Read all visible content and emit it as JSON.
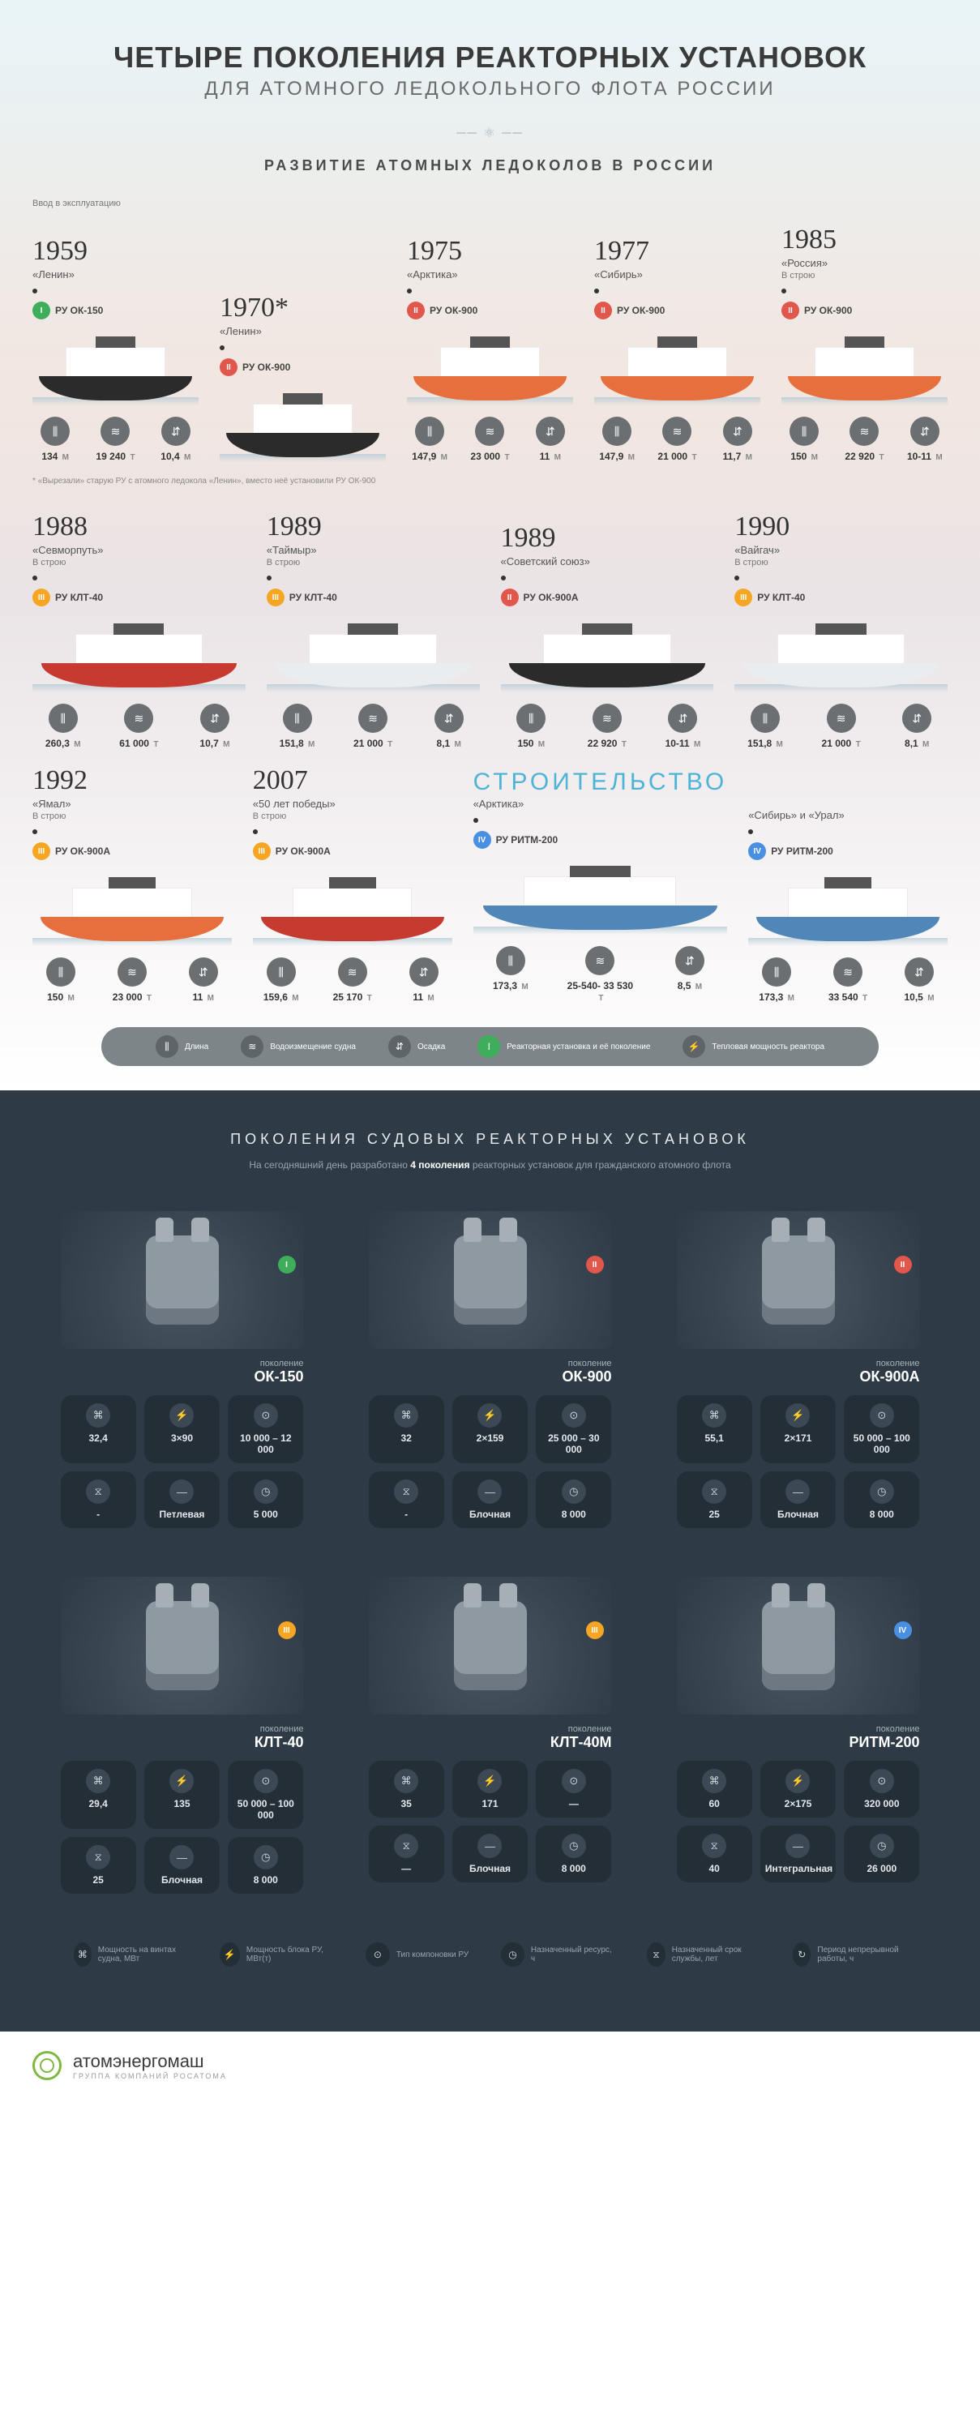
{
  "colors": {
    "gen1": "#3fae5a",
    "gen2": "#e2574c",
    "gen3": "#f6a623",
    "gen4": "#4a90e2",
    "construction": "#4db4d6"
  },
  "header": {
    "title": "ЧЕТЫРЕ ПОКОЛЕНИЯ РЕАКТОРНЫХ УСТАНОВОК",
    "subtitle": "ДЛЯ АТОМНОГО ЛЕДОКОЛЬНОГО ФЛОТА РОССИИ",
    "section_heading": "РАЗВИТИЕ АТОМНЫХ ЛЕДОКОЛОВ В РОССИИ",
    "intro_caption": "Ввод в эксплуатацию"
  },
  "hull_colors": {
    "black": "#2b2b2b",
    "orange": "#e76f3d",
    "red": "#c63a2f",
    "blue": "#5187b8",
    "white": "#e9edef"
  },
  "ships": [
    {
      "year": "1959",
      "name": "«Ленин»",
      "status": "",
      "gen": "I",
      "gen_color": "gen1",
      "reactor": "РУ ОК-150",
      "hull": "black",
      "metrics": {
        "length": "134",
        "disp": "19 240",
        "draft": "10,4"
      }
    },
    {
      "year": "1970*",
      "name": "«Ленин»",
      "status": "",
      "gen": "II",
      "gen_color": "gen2",
      "reactor": "РУ ОК-900",
      "hull": "black",
      "metrics": null
    },
    {
      "year": "1975",
      "name": "«Арктика»",
      "status": "",
      "gen": "II",
      "gen_color": "gen2",
      "reactor": "РУ ОК-900",
      "hull": "orange",
      "metrics": {
        "length": "147,9",
        "disp": "23 000",
        "draft": "11"
      }
    },
    {
      "year": "1977",
      "name": "«Сибирь»",
      "status": "",
      "gen": "II",
      "gen_color": "gen2",
      "reactor": "РУ ОК-900",
      "hull": "orange",
      "metrics": {
        "length": "147,9",
        "disp": "21 000",
        "draft": "11,7"
      }
    },
    {
      "year": "1985",
      "name": "«Россия»",
      "status": "В строю",
      "gen": "II",
      "gen_color": "gen2",
      "reactor": "РУ ОК-900",
      "hull": "orange",
      "metrics": {
        "length": "150",
        "disp": "22 920",
        "draft": "10-11"
      }
    },
    {
      "year": "1988",
      "name": "«Севморпуть»",
      "status": "В строю",
      "gen": "III",
      "gen_color": "gen3",
      "reactor": "РУ КЛТ-40",
      "hull": "red",
      "metrics": {
        "length": "260,3",
        "disp": "61 000",
        "draft": "10,7"
      }
    },
    {
      "year": "1989",
      "name": "«Таймыр»",
      "status": "В строю",
      "gen": "III",
      "gen_color": "gen3",
      "reactor": "РУ КЛТ-40",
      "hull": "white",
      "metrics": {
        "length": "151,8",
        "disp": "21 000",
        "draft": "8,1"
      }
    },
    {
      "year": "1989",
      "name": "«Советский союз»",
      "status": "",
      "gen": "II",
      "gen_color": "gen2",
      "reactor": "РУ ОК-900А",
      "hull": "black",
      "metrics": {
        "length": "150",
        "disp": "22 920",
        "draft": "10-11"
      }
    },
    {
      "year": "1990",
      "name": "«Вайгач»",
      "status": "В строю",
      "gen": "III",
      "gen_color": "gen3",
      "reactor": "РУ КЛТ-40",
      "hull": "white",
      "metrics": {
        "length": "151,8",
        "disp": "21 000",
        "draft": "8,1"
      }
    },
    {
      "year": "1992",
      "name": "«Ямал»",
      "status": "В строю",
      "gen": "III",
      "gen_color": "gen3",
      "reactor": "РУ ОК-900А",
      "hull": "orange",
      "metrics": {
        "length": "150",
        "disp": "23 000",
        "draft": "11"
      }
    },
    {
      "year": "2007",
      "name": "«50 лет победы»",
      "status": "В строю",
      "gen": "III",
      "gen_color": "gen3",
      "reactor": "РУ ОК-900А",
      "hull": "red",
      "metrics": {
        "length": "159,6",
        "disp": "25 170",
        "draft": "11"
      }
    },
    {
      "year": "",
      "name": "«Арктика»",
      "status": "",
      "gen": "IV",
      "gen_color": "gen4",
      "reactor": "РУ РИТМ-200",
      "hull": "blue",
      "construction": true,
      "metrics": {
        "length": "173,3",
        "disp": "25-540- 33 530",
        "draft": "8,5"
      }
    },
    {
      "year": "",
      "name": "«Сибирь» и «Урал»",
      "status": "",
      "gen": "IV",
      "gen_color": "gen4",
      "reactor": "РУ РИТМ-200",
      "hull": "blue",
      "construction": true,
      "metrics": {
        "length": "173,3",
        "disp": "33 540",
        "draft": "10,5"
      }
    }
  ],
  "construction_label": "СТРОИТЕЛЬСТВО",
  "footnote": "* «Вырезали» старую РУ с атомного ледокола «Ленин», вместо неё установили РУ ОК-900",
  "metric_units": {
    "length": "М",
    "disp": "Т",
    "draft": "М"
  },
  "metric_icons": {
    "length": "⫼",
    "disp": "≋",
    "draft": "⇵"
  },
  "timeline_legend": [
    {
      "icon": "⫼",
      "label": "Длина"
    },
    {
      "icon": "≋",
      "label": "Водоизмещение судна"
    },
    {
      "icon": "⇵",
      "label": "Осадка"
    },
    {
      "icon": "I",
      "label": "Реакторная установка и её поколение",
      "green": true
    },
    {
      "icon": "⚡",
      "label": "Тепловая мощность реактора"
    }
  ],
  "reactors_section": {
    "heading": "ПОКОЛЕНИЯ СУДОВЫХ РЕАКТОРНЫХ УСТАНОВОК",
    "sub_pre": "На сегодняшний день разработано ",
    "sub_em": "4 поколения",
    "sub_post": " реакторных установок для гражданского атомного флота",
    "gen_label": "поколение"
  },
  "reactor_stat_icons": [
    "⌘",
    "⚡",
    "⊙",
    "⧖",
    "—",
    "◷"
  ],
  "reactors": [
    {
      "gen": "I",
      "gen_color": "gen1",
      "name": "ОК-150",
      "stats": [
        "32,4",
        "3×90",
        "10 000 – 12 000",
        "-",
        "Петлевая",
        "5 000"
      ]
    },
    {
      "gen": "II",
      "gen_color": "gen2",
      "name": "ОК-900",
      "stats": [
        "32",
        "2×159",
        "25 000 – 30 000",
        "-",
        "Блочная",
        "8 000"
      ]
    },
    {
      "gen": "II",
      "gen_color": "gen2",
      "name": "ОК-900А",
      "stats": [
        "55,1",
        "2×171",
        "50 000 – 100 000",
        "25",
        "Блочная",
        "8 000"
      ]
    },
    {
      "gen": "III",
      "gen_color": "gen3",
      "name": "КЛТ-40",
      "stats": [
        "29,4",
        "135",
        "50 000 – 100 000",
        "25",
        "Блочная",
        "8 000"
      ]
    },
    {
      "gen": "III",
      "gen_color": "gen3",
      "name": "КЛТ-40М",
      "stats": [
        "35",
        "171",
        "",
        "",
        "Блочная",
        "8 000"
      ]
    },
    {
      "gen": "IV",
      "gen_color": "gen4",
      "name": "РИТМ-200",
      "stats": [
        "60",
        "2×175",
        "320 000",
        "40",
        "Интегральная",
        "26 000"
      ]
    }
  ],
  "reactor_legend": [
    {
      "icon": "⌘",
      "label": "Мощность на винтах судна, МВт"
    },
    {
      "icon": "⚡",
      "label": "Мощность блока РУ, МВт(т)"
    },
    {
      "icon": "⊙",
      "label": "Тип компоновки РУ"
    },
    {
      "icon": "◷",
      "label": "Назначенный ресурс, ч"
    },
    {
      "icon": "⧖",
      "label": "Назначенный срок службы, лет"
    },
    {
      "icon": "↻",
      "label": "Период непрерывной работы, ч"
    }
  ],
  "footer": {
    "brand": "атомэнергомаш",
    "tag": "ГРУППА КОМПАНИЙ РОСАТОМА"
  }
}
